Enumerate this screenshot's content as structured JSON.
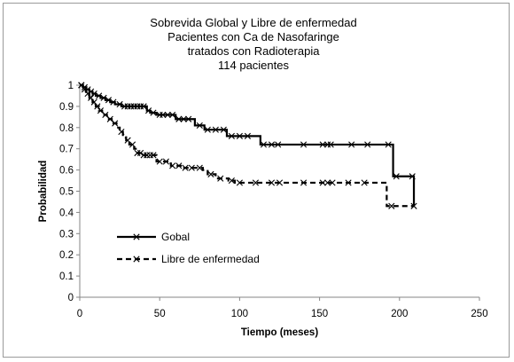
{
  "chart_data": {
    "type": "line",
    "subtype": "kaplan-meier step",
    "title_lines": [
      "Sobrevida Global y Libre de enfermedad",
      "Pacientes con Ca de Nasofaringe",
      "tratados con Radioterapia",
      "114 pacientes"
    ],
    "xlabel": "Tiempo (meses)",
    "ylabel": "Probabilidad",
    "xlim": [
      0,
      250
    ],
    "ylim": [
      0,
      1
    ],
    "x_ticks": [
      0,
      50,
      100,
      150,
      200,
      250
    ],
    "y_ticks": [
      0,
      0.1,
      0.2,
      0.3,
      0.4,
      0.5,
      0.6,
      0.7,
      0.8,
      0.9,
      1
    ],
    "y_tick_labels": [
      "0",
      "0.1",
      "0.2",
      "0.3",
      "0.4",
      "0.5",
      "0.6",
      "0.7",
      "0.8",
      "0.9",
      "1"
    ],
    "grid": false,
    "legend_position": "left-center",
    "series": [
      {
        "name": "Gobal",
        "line_style": "solid",
        "color": "#000000",
        "steps": [
          [
            0,
            1.0
          ],
          [
            2,
            0.99
          ],
          [
            4,
            0.98
          ],
          [
            6,
            0.97
          ],
          [
            8,
            0.96
          ],
          [
            10,
            0.95
          ],
          [
            13,
            0.94
          ],
          [
            16,
            0.93
          ],
          [
            19,
            0.92
          ],
          [
            22,
            0.91
          ],
          [
            26,
            0.9
          ],
          [
            42,
            0.88
          ],
          [
            44,
            0.87
          ],
          [
            48,
            0.86
          ],
          [
            60,
            0.84
          ],
          [
            72,
            0.81
          ],
          [
            78,
            0.79
          ],
          [
            92,
            0.76
          ],
          [
            113,
            0.72
          ],
          [
            196,
            0.57
          ],
          [
            209,
            0.43
          ]
        ],
        "censor_x": [
          1,
          3,
          5,
          7,
          9,
          12,
          15,
          18,
          21,
          25,
          28,
          30,
          32,
          34,
          36,
          38,
          40,
          43,
          46,
          50,
          52,
          55,
          58,
          62,
          65,
          68,
          75,
          80,
          85,
          90,
          95,
          100,
          105,
          115,
          120,
          124,
          140,
          152,
          155,
          157,
          170,
          180,
          193,
          198,
          208
        ]
      },
      {
        "name": "Libre de enfermedad",
        "line_style": "dashed",
        "color": "#000000",
        "steps": [
          [
            0,
            1.0
          ],
          [
            2,
            0.98
          ],
          [
            4,
            0.96
          ],
          [
            6,
            0.94
          ],
          [
            8,
            0.92
          ],
          [
            10,
            0.9
          ],
          [
            12,
            0.88
          ],
          [
            14,
            0.86
          ],
          [
            17,
            0.84
          ],
          [
            20,
            0.82
          ],
          [
            23,
            0.8
          ],
          [
            25,
            0.78
          ],
          [
            27,
            0.76
          ],
          [
            29,
            0.74
          ],
          [
            31,
            0.72
          ],
          [
            34,
            0.7
          ],
          [
            36,
            0.68
          ],
          [
            40,
            0.67
          ],
          [
            48,
            0.64
          ],
          [
            57,
            0.62
          ],
          [
            64,
            0.61
          ],
          [
            77,
            0.6
          ],
          [
            80,
            0.58
          ],
          [
            85,
            0.56
          ],
          [
            93,
            0.55
          ],
          [
            97,
            0.54
          ],
          [
            192,
            0.43
          ]
        ],
        "censor_x": [
          1,
          3,
          5,
          7,
          9,
          11,
          13,
          16,
          19,
          22,
          26,
          30,
          33,
          36,
          38,
          40,
          42,
          44,
          46,
          50,
          54,
          58,
          62,
          66,
          70,
          75,
          82,
          88,
          95,
          100,
          110,
          120,
          125,
          140,
          152,
          155,
          158,
          168,
          178,
          195,
          209
        ]
      }
    ]
  }
}
